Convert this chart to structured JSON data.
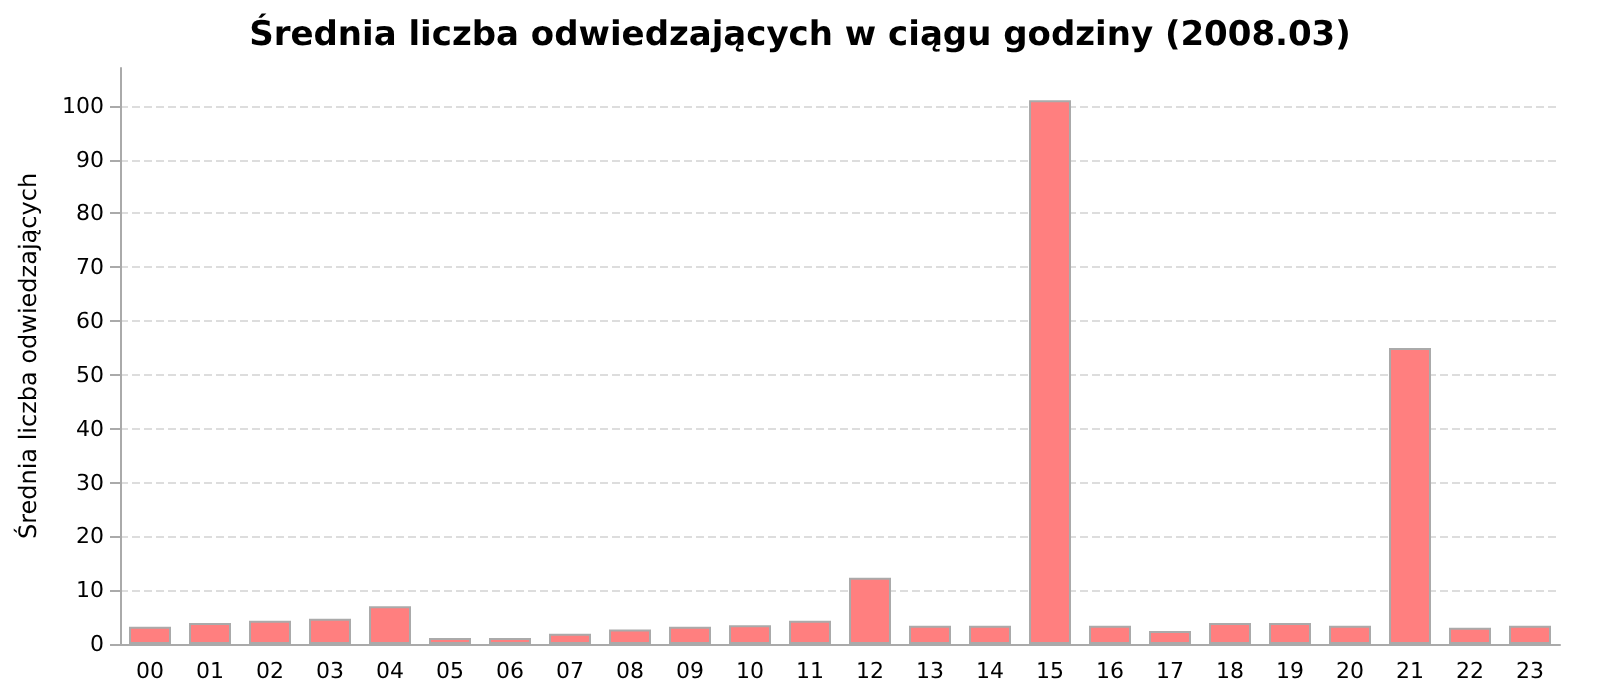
{
  "chart_data": {
    "type": "bar",
    "title": "Średnia liczba odwiedzających w ciągu godziny (2008.03)",
    "ylabel": "Średnia liczba odwiedzających",
    "categories": [
      "00",
      "01",
      "02",
      "03",
      "04",
      "05",
      "06",
      "07",
      "08",
      "09",
      "10",
      "11",
      "12",
      "13",
      "14",
      "15",
      "16",
      "17",
      "18",
      "19",
      "20",
      "21",
      "22",
      "23"
    ],
    "values": [
      3.2,
      3.9,
      4.3,
      4.7,
      7.0,
      1.1,
      1.1,
      1.9,
      2.7,
      3.2,
      3.5,
      4.3,
      12.3,
      3.4,
      3.4,
      101,
      3.4,
      2.4,
      3.9,
      3.9,
      3.4,
      55,
      3.0,
      3.4
    ],
    "color": "#ff7f7f",
    "ylim": [
      0,
      107
    ],
    "yticks": [
      0,
      10,
      20,
      30,
      40,
      50,
      60,
      70,
      80,
      90,
      100
    ],
    "grid": "y"
  }
}
